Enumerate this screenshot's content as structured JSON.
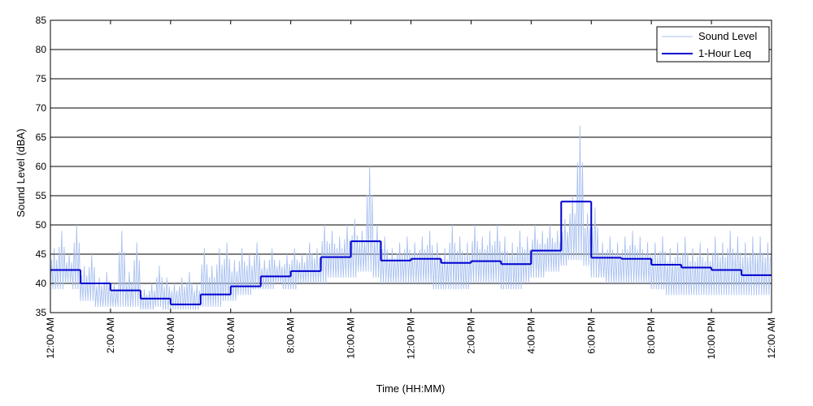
{
  "chart_data": {
    "type": "line",
    "title": "",
    "xlabel": "Time (HH:MM)",
    "ylabel": "Sound Level (dBA)",
    "xlim": [
      0,
      24
    ],
    "ylim": [
      35,
      85
    ],
    "y_ticks": [
      35,
      40,
      45,
      50,
      55,
      60,
      65,
      70,
      75,
      80,
      85
    ],
    "x_ticks": [
      {
        "hour": 0,
        "label": "12:00 AM"
      },
      {
        "hour": 2,
        "label": "2:00 AM"
      },
      {
        "hour": 4,
        "label": "4:00 AM"
      },
      {
        "hour": 6,
        "label": "6:00 AM"
      },
      {
        "hour": 8,
        "label": "8:00 AM"
      },
      {
        "hour": 10,
        "label": "10:00 AM"
      },
      {
        "hour": 12,
        "label": "12:00 PM"
      },
      {
        "hour": 14,
        "label": "2:00 PM"
      },
      {
        "hour": 16,
        "label": "4:00 PM"
      },
      {
        "hour": 18,
        "label": "6:00 PM"
      },
      {
        "hour": 20,
        "label": "8:00 PM"
      },
      {
        "hour": 22,
        "label": "10:00 PM"
      },
      {
        "hour": 24,
        "label": "12:00 AM"
      }
    ],
    "grid": "horizontal",
    "legend_position": "top-right",
    "series": [
      {
        "name": "Sound Level",
        "color": "#a9c1f0",
        "style": "thin line",
        "hour_start": [
          0,
          0.25,
          0.5,
          0.75,
          1,
          1.25,
          1.5,
          1.75,
          2,
          2.25,
          2.5,
          2.75,
          3,
          3.25,
          3.5,
          3.75,
          4,
          4.25,
          4.5,
          4.75,
          5,
          5.25,
          5.5,
          5.75,
          6,
          6.25,
          6.5,
          6.75,
          7,
          7.25,
          7.5,
          7.75,
          8,
          8.25,
          8.5,
          8.75,
          9,
          9.25,
          9.5,
          9.75,
          10,
          10.25,
          10.5,
          10.75,
          11,
          11.25,
          11.5,
          11.75,
          12,
          12.25,
          12.5,
          12.75,
          13,
          13.25,
          13.5,
          13.75,
          14,
          14.25,
          14.5,
          14.75,
          15,
          15.25,
          15.5,
          15.75,
          16,
          16.25,
          16.5,
          16.75,
          17,
          17.25,
          17.5,
          17.75,
          18,
          18.25,
          18.5,
          18.75,
          19,
          19.25,
          19.5,
          19.75,
          20,
          20.25,
          20.5,
          20.75,
          21,
          21.25,
          21.5,
          21.75,
          22,
          22.25,
          22.5,
          22.75,
          23,
          23.25,
          23.5,
          23.75
        ],
        "low": [
          39,
          39,
          40,
          39,
          37,
          37,
          36,
          36,
          36,
          36,
          36,
          36,
          35.5,
          35.5,
          36,
          35.5,
          35.5,
          35.5,
          35.5,
          35.5,
          36,
          36,
          36,
          37,
          37,
          38,
          38,
          39,
          39,
          39,
          40,
          39,
          39,
          40,
          40,
          40,
          40,
          41,
          41,
          41,
          41,
          42,
          42,
          41,
          40,
          40,
          40,
          40,
          40,
          40,
          40,
          39,
          39,
          39,
          39,
          39,
          40,
          40,
          40,
          40,
          39,
          39,
          39,
          40,
          41,
          41,
          42,
          42,
          43,
          44,
          44,
          43,
          41,
          41,
          40,
          40,
          40,
          40,
          40,
          40,
          39,
          39,
          38,
          38,
          38,
          38,
          38,
          38,
          38,
          38,
          38,
          38,
          38,
          38,
          38,
          38
        ],
        "high": [
          46,
          49,
          45,
          50,
          43,
          45,
          41,
          42,
          40,
          49,
          42,
          47,
          39,
          40,
          43,
          41,
          40,
          41,
          42,
          40,
          46,
          43,
          46,
          47,
          44,
          46,
          45,
          47,
          44,
          46,
          44,
          45,
          46,
          45,
          47,
          46,
          50,
          49,
          48,
          50,
          51,
          49,
          60,
          50,
          48,
          46,
          47,
          48,
          47,
          48,
          49,
          47,
          46,
          50,
          48,
          47,
          50,
          48,
          49,
          50,
          48,
          47,
          49,
          48,
          50,
          49,
          50,
          49,
          51,
          55,
          67,
          52,
          53,
          47,
          48,
          47,
          48,
          49,
          48,
          47,
          47,
          48,
          46,
          47,
          48,
          46,
          47,
          46,
          48,
          47,
          49,
          48,
          47,
          48,
          48,
          47
        ]
      },
      {
        "name": "1-Hour Leq",
        "color": "#0000d0",
        "style": "thick step line",
        "hour_start": [
          0,
          1,
          2,
          3,
          4,
          5,
          6,
          7,
          8,
          9,
          10,
          11,
          12,
          13,
          14,
          15,
          16,
          17,
          18,
          19,
          20,
          21,
          22,
          23
        ],
        "values": [
          42.3,
          40.0,
          38.8,
          37.4,
          36.4,
          38.1,
          39.5,
          41.2,
          42.1,
          44.5,
          47.2,
          43.9,
          44.2,
          43.5,
          43.8,
          43.3,
          45.6,
          54.0,
          44.4,
          44.2,
          43.2,
          42.7,
          42.3,
          41.4
        ]
      }
    ]
  }
}
